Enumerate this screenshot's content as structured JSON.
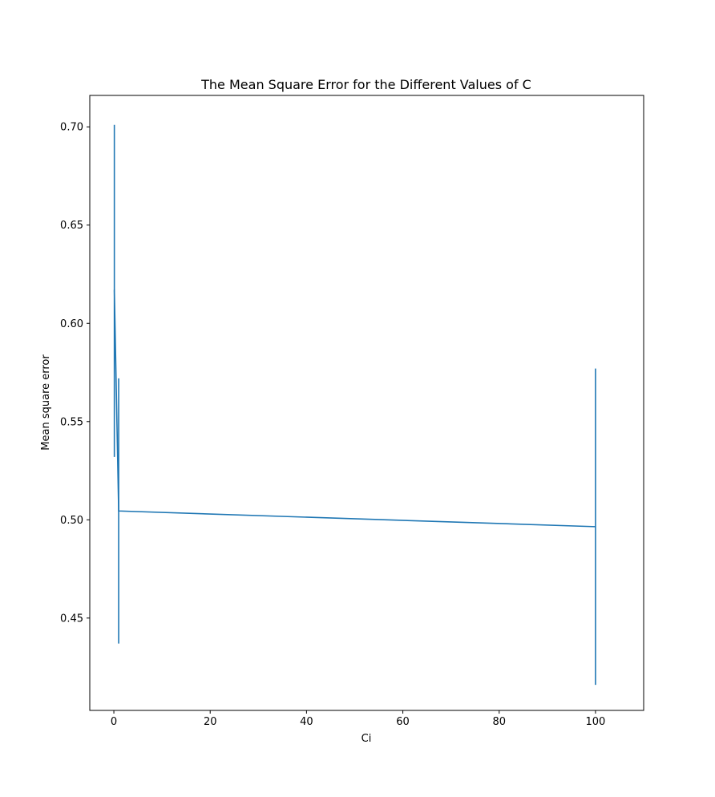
{
  "chart_data": {
    "type": "line",
    "title": "The Mean Square Error for the Different Values of C",
    "xlabel": "Ci",
    "ylabel": "Mean square error",
    "xlim": [
      -5,
      110
    ],
    "ylim": [
      0.403,
      0.716
    ],
    "xticks": [
      0,
      20,
      40,
      60,
      80,
      100
    ],
    "xtick_labels": [
      "0",
      "20",
      "40",
      "60",
      "80",
      "100"
    ],
    "yticks": [
      0.45,
      0.5,
      0.55,
      0.6,
      0.65,
      0.7
    ],
    "ytick_labels": [
      "0.45",
      "0.50",
      "0.55",
      "0.60",
      "0.65",
      "0.70"
    ],
    "grid": false,
    "series": [
      {
        "color": "#1f77b4",
        "points": [
          {
            "x": 0.01,
            "y": 0.617,
            "yerr_low": 0.617,
            "yerr_high": 0.617
          },
          {
            "x": 0.1,
            "y": 0.617,
            "yerr_low": 0.532,
            "yerr_high": 0.701
          },
          {
            "x": 1,
            "y": 0.5045,
            "yerr_low": 0.437,
            "yerr_high": 0.572
          },
          {
            "x": 100,
            "y": 0.4965,
            "yerr_low": 0.416,
            "yerr_high": 0.577
          }
        ]
      }
    ]
  }
}
